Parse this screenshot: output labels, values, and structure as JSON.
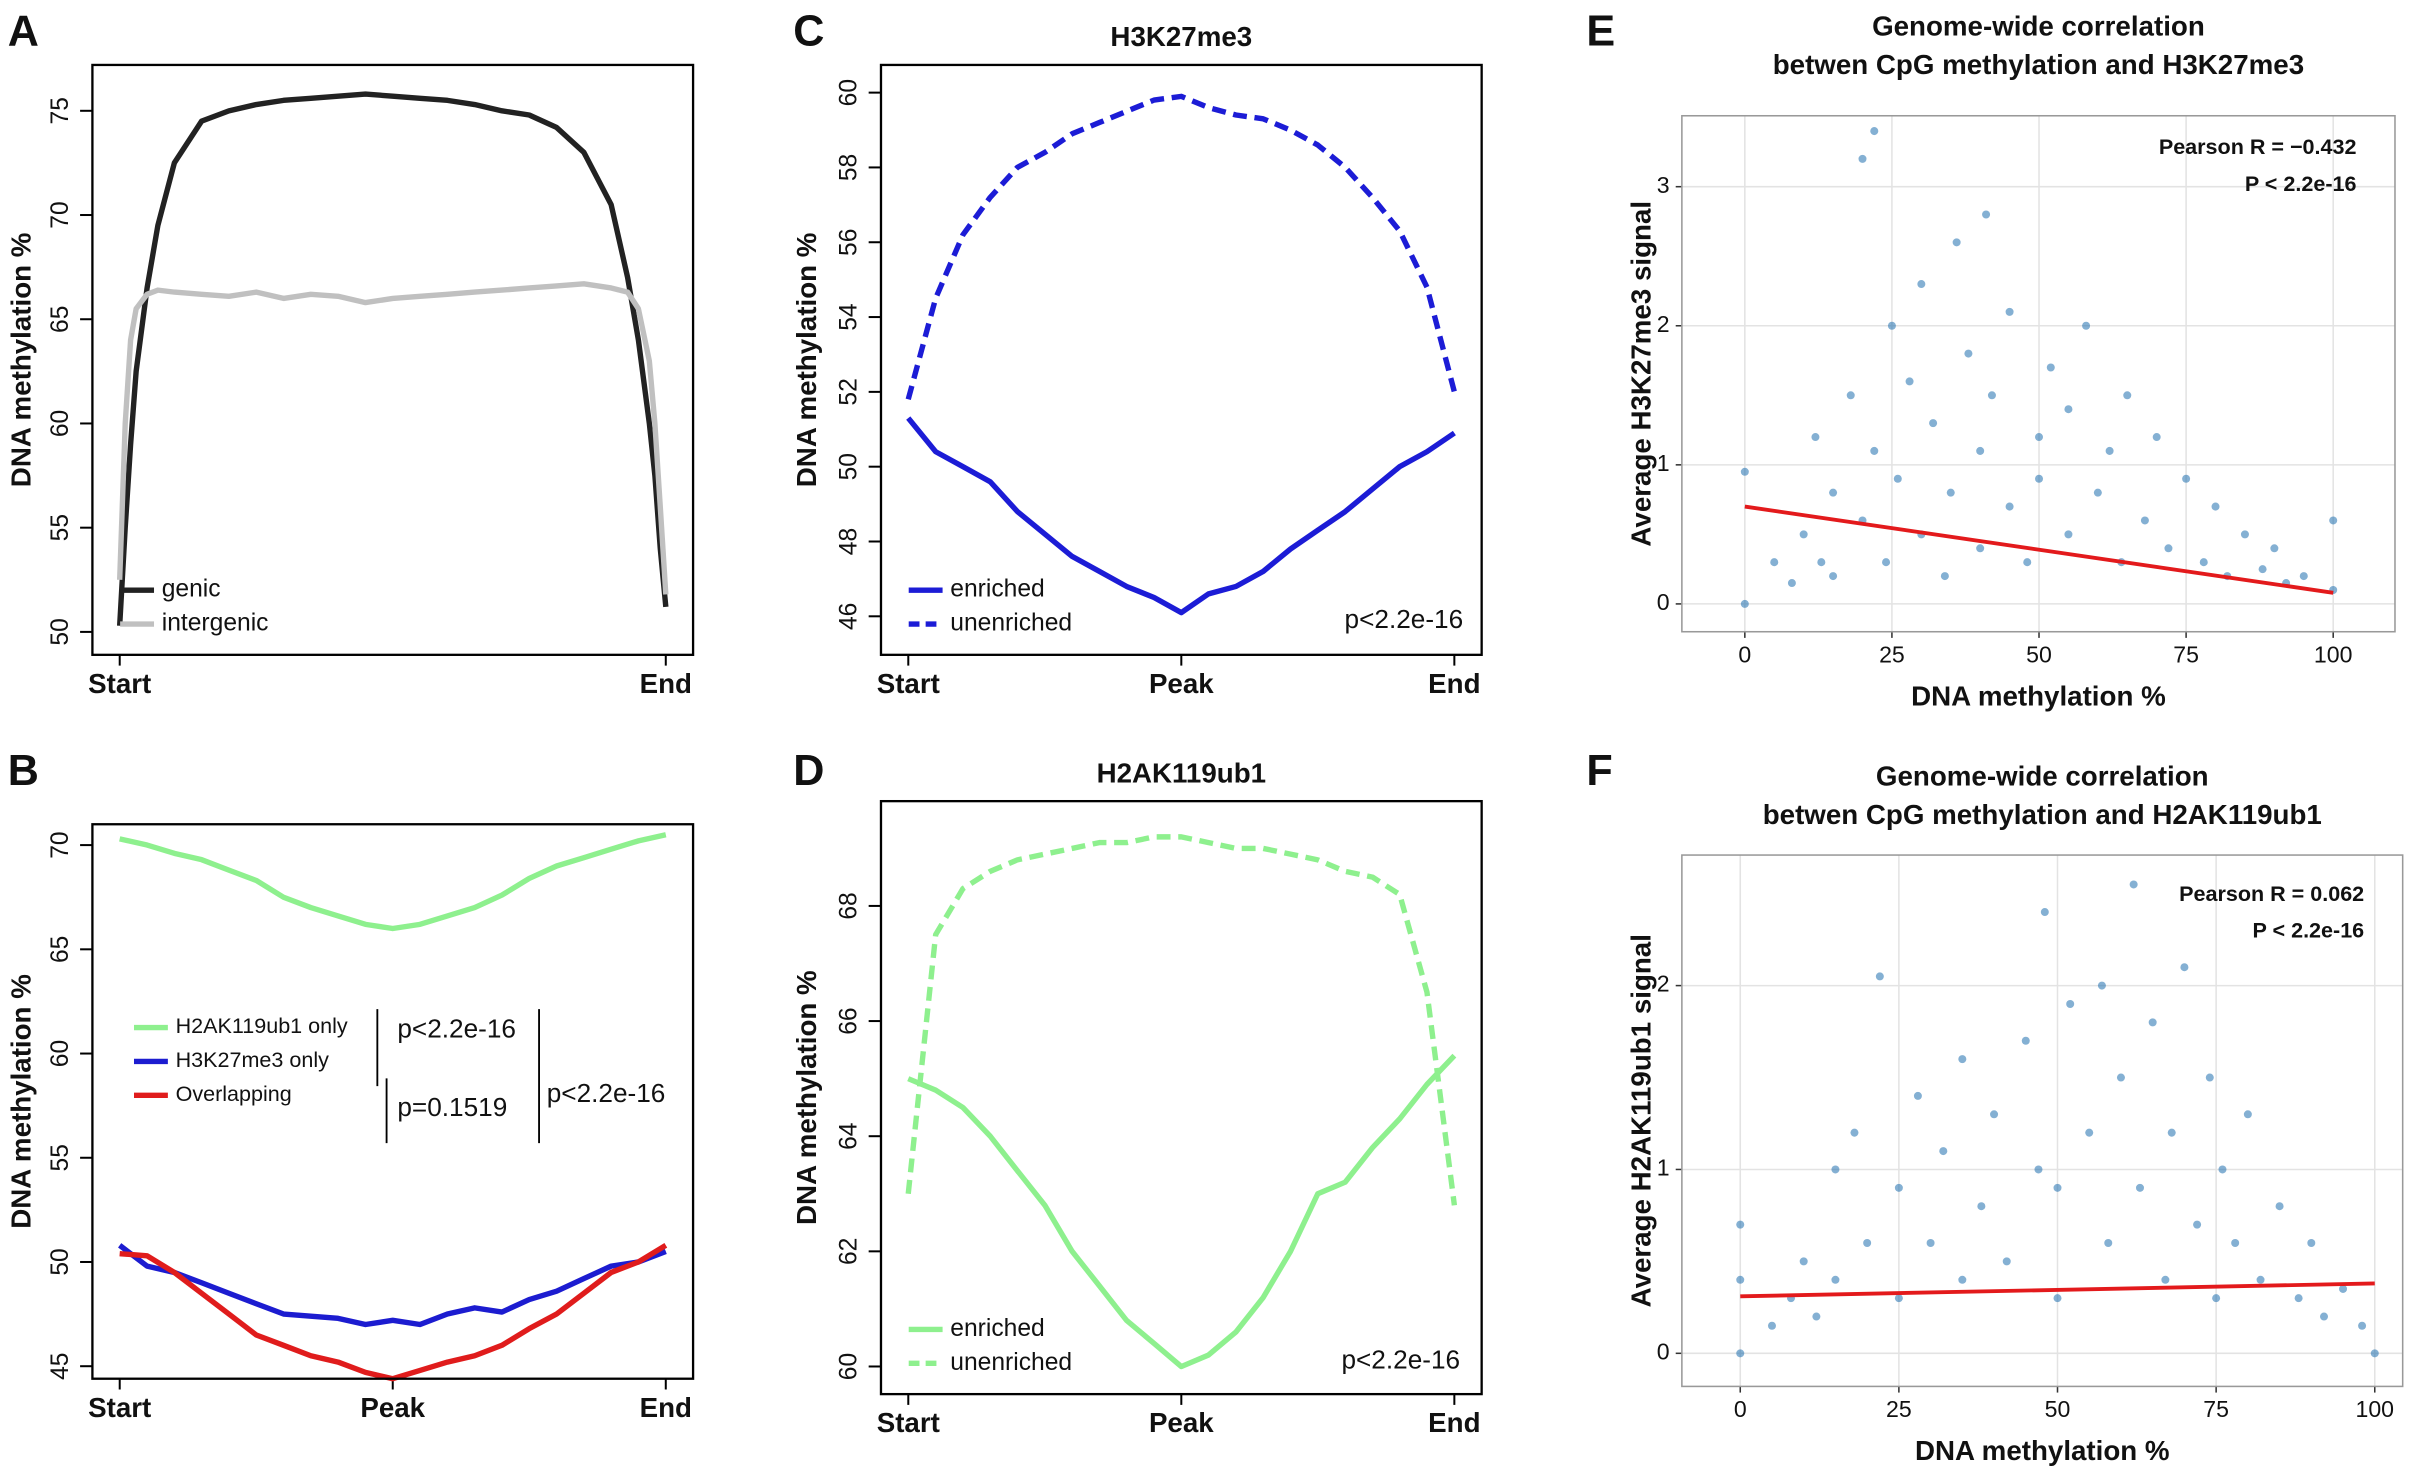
{
  "chart_data": [
    {
      "type": "line",
      "panel_label": "A",
      "ylabel": "DNA methylation %",
      "x": [
        0,
        1,
        2,
        3,
        5,
        7,
        10,
        15,
        20,
        25,
        30,
        35,
        40,
        45,
        50,
        55,
        60,
        65,
        70,
        75,
        80,
        85,
        90,
        93,
        95,
        97,
        98,
        99,
        100
      ],
      "xlim": [
        -5,
        105
      ],
      "xticks": [
        {
          "value": 0,
          "label": "Start"
        },
        {
          "value": 100,
          "label": "End"
        }
      ],
      "ylim": [
        48.9,
        77.2
      ],
      "yticks": [
        50,
        55,
        60,
        65,
        70,
        75
      ],
      "grid": false,
      "legend": "bottom-left",
      "series": [
        {
          "name": "genic",
          "color": "#222222",
          "values": [
            50.3,
            55,
            59,
            62.5,
            66.5,
            69.5,
            72.5,
            74.5,
            75,
            75.3,
            75.5,
            75.6,
            75.7,
            75.8,
            75.7,
            75.6,
            75.5,
            75.3,
            75,
            74.8,
            74.2,
            73,
            70.5,
            67,
            64,
            60,
            57.5,
            54,
            51.2
          ]
        },
        {
          "name": "intergenic",
          "color": "#c0c0c0",
          "values": [
            52.5,
            60,
            64,
            65.5,
            66.2,
            66.4,
            66.3,
            66.2,
            66.1,
            66.3,
            66,
            66.2,
            66.1,
            65.8,
            66,
            66.1,
            66.2,
            66.3,
            66.4,
            66.5,
            66.6,
            66.7,
            66.5,
            66.3,
            65.5,
            63,
            60,
            56,
            51.8
          ]
        }
      ]
    },
    {
      "type": "line",
      "panel_label": "B",
      "ylabel": "DNA methylation %",
      "x": [
        0,
        5,
        10,
        15,
        20,
        25,
        30,
        35,
        40,
        45,
        50,
        55,
        60,
        65,
        70,
        75,
        80,
        85,
        90,
        95,
        100
      ],
      "xlim": [
        -5,
        105
      ],
      "xticks": [
        {
          "value": 0,
          "label": "Start"
        },
        {
          "value": 50,
          "label": "Peak"
        },
        {
          "value": 100,
          "label": "End"
        }
      ],
      "ylim": [
        44.4,
        71
      ],
      "yticks": [
        45,
        50,
        55,
        60,
        65,
        70
      ],
      "grid": false,
      "legend": "left",
      "annotations": [
        "p<2.2e-16",
        "p=0.1519",
        "p<2.2e-16"
      ],
      "series": [
        {
          "name": "H2AK119ub1 only",
          "color": "#8ef08e",
          "values": [
            70.3,
            70,
            69.6,
            69.3,
            68.8,
            68.3,
            67.5,
            67,
            66.6,
            66.2,
            66,
            66.2,
            66.6,
            67,
            67.6,
            68.4,
            69,
            69.4,
            69.8,
            70.2,
            70.5
          ]
        },
        {
          "name": "H3K27me3 only",
          "color": "#1c1cd0",
          "values": [
            50.8,
            49.8,
            49.5,
            49,
            48.5,
            48,
            47.5,
            47.4,
            47.3,
            47,
            47.2,
            47,
            47.5,
            47.8,
            47.6,
            48.2,
            48.6,
            49.2,
            49.8,
            50,
            50.5
          ]
        },
        {
          "name": "Overlapping",
          "color": "#e01c1c",
          "values": [
            50.4,
            50.3,
            49.5,
            48.5,
            47.5,
            46.5,
            46,
            45.5,
            45.2,
            44.7,
            44.4,
            44.8,
            45.2,
            45.5,
            46,
            46.8,
            47.5,
            48.5,
            49.5,
            50,
            50.8
          ]
        }
      ]
    },
    {
      "type": "line",
      "panel_label": "C",
      "title": "H3K27me3",
      "ylabel": "DNA methylation %",
      "x": [
        0,
        5,
        10,
        15,
        20,
        25,
        30,
        35,
        40,
        45,
        50,
        55,
        60,
        65,
        70,
        75,
        80,
        85,
        90,
        95,
        100
      ],
      "xlim": [
        -5,
        105
      ],
      "xticks": [
        {
          "value": 0,
          "label": "Start"
        },
        {
          "value": 50,
          "label": "Peak"
        },
        {
          "value": 100,
          "label": "End"
        }
      ],
      "ylim": [
        44.97,
        60.74
      ],
      "yticks": [
        46,
        48,
        50,
        52,
        54,
        56,
        58,
        60
      ],
      "grid": false,
      "legend": "bottom-left",
      "annotations": [
        "p<2.2e-16"
      ],
      "series": [
        {
          "name": "enriched",
          "color": "#1c1cd6",
          "dashed": false,
          "values": [
            51.3,
            50.4,
            50,
            49.6,
            48.8,
            48.2,
            47.6,
            47.2,
            46.8,
            46.5,
            46.1,
            46.6,
            46.8,
            47.2,
            47.8,
            48.3,
            48.8,
            49.4,
            50,
            50.4,
            50.9
          ]
        },
        {
          "name": "unenriched",
          "color": "#1c1cd6",
          "dashed": true,
          "values": [
            51.8,
            54.5,
            56.2,
            57.2,
            58,
            58.4,
            58.9,
            59.2,
            59.5,
            59.8,
            59.9,
            59.6,
            59.4,
            59.3,
            59,
            58.6,
            58,
            57.2,
            56.3,
            54.8,
            52
          ]
        }
      ]
    },
    {
      "type": "line",
      "panel_label": "D",
      "title": "H2AK119ub1",
      "ylabel": "DNA methylation %",
      "x": [
        0,
        5,
        10,
        15,
        20,
        25,
        30,
        35,
        40,
        45,
        50,
        55,
        60,
        65,
        70,
        75,
        80,
        85,
        90,
        95,
        100
      ],
      "xlim": [
        -5,
        105
      ],
      "xticks": [
        {
          "value": 0,
          "label": "Start"
        },
        {
          "value": 50,
          "label": "Peak"
        },
        {
          "value": 100,
          "label": "End"
        }
      ],
      "ylim": [
        59.52,
        69.82
      ],
      "yticks": [
        60,
        62,
        64,
        66,
        68
      ],
      "grid": false,
      "legend": "bottom-left",
      "annotations": [
        "p<2.2e-16"
      ],
      "series": [
        {
          "name": "enriched",
          "color": "#8ef08e",
          "dashed": false,
          "values": [
            65,
            64.8,
            64.5,
            64,
            63.4,
            62.8,
            62,
            61.4,
            60.8,
            60.4,
            60,
            60.2,
            60.6,
            61.2,
            62,
            63,
            63.2,
            63.8,
            64.3,
            64.9,
            65.4
          ]
        },
        {
          "name": "unenriched",
          "color": "#8ef08e",
          "dashed": true,
          "values": [
            63,
            67.5,
            68.3,
            68.6,
            68.8,
            68.9,
            69,
            69.1,
            69.1,
            69.2,
            69.2,
            69.1,
            69,
            69,
            68.9,
            68.8,
            68.6,
            68.5,
            68.2,
            66.5,
            62.8
          ]
        }
      ]
    },
    {
      "type": "scatter",
      "panel_label": "E",
      "title": [
        "Genome-wide correlation",
        "betwen CpG methylation and H3K27me3"
      ],
      "xlabel": "DNA methylation %",
      "ylabel": "Average H3K27me3 signal",
      "xlim": [
        -10.7,
        110.5
      ],
      "xticks": [
        0,
        25,
        50,
        75,
        100
      ],
      "ylim": [
        -0.2,
        3.51
      ],
      "yticks": [
        0,
        1,
        2,
        3
      ],
      "grid": true,
      "annotations": [
        "Pearson R = −0.432",
        "P < 2.2e-16"
      ],
      "series": [
        {
          "color": "#1f6fae",
          "x": [
            0,
            0,
            5,
            8,
            10,
            12,
            13,
            15,
            15,
            18,
            20,
            20,
            22,
            22,
            24,
            25,
            26,
            28,
            30,
            30,
            32,
            34,
            35,
            36,
            38,
            40,
            40,
            41,
            42,
            45,
            45,
            48,
            50,
            50,
            52,
            55,
            55,
            58,
            60,
            62,
            64,
            65,
            68,
            70,
            72,
            75,
            78,
            80,
            82,
            85,
            88,
            90,
            92,
            95,
            100,
            100
          ],
          "values": [
            0.95,
            0,
            0.3,
            0.15,
            0.5,
            1.2,
            0.3,
            0.8,
            0.2,
            1.5,
            0.6,
            3.2,
            3.4,
            1.1,
            0.3,
            2,
            0.9,
            1.6,
            0.5,
            2.3,
            1.3,
            0.2,
            0.8,
            2.6,
            1.8,
            0.4,
            1.1,
            2.8,
            1.5,
            0.7,
            2.1,
            0.3,
            1.2,
            0.9,
            1.7,
            0.5,
            1.4,
            2,
            0.8,
            1.1,
            0.3,
            1.5,
            0.6,
            1.2,
            0.4,
            0.9,
            0.3,
            0.7,
            0.2,
            0.5,
            0.25,
            0.4,
            0.15,
            0.2,
            0.1,
            0.6
          ]
        }
      ],
      "fit": {
        "color": "#e31a1c",
        "x": [
          0,
          100
        ],
        "values": [
          0.7,
          0.08
        ]
      }
    },
    {
      "type": "scatter",
      "panel_label": "F",
      "title": [
        "Genome-wide correlation",
        "betwen CpG methylation and H2AK119ub1"
      ],
      "xlabel": "DNA methylation %",
      "ylabel": "Average H2AK119ub1 signal",
      "xlim": [
        -9.2,
        104.4
      ],
      "xticks": [
        0,
        25,
        50,
        75,
        100
      ],
      "ylim": [
        -0.18,
        2.71
      ],
      "yticks": [
        0,
        1,
        2
      ],
      "grid": true,
      "annotations": [
        "Pearson R = 0.062",
        "P < 2.2e-16"
      ],
      "series": [
        {
          "color": "#1f6fae",
          "x": [
            0,
            0,
            0,
            5,
            8,
            10,
            12,
            15,
            15,
            18,
            20,
            22,
            25,
            25,
            28,
            30,
            32,
            35,
            35,
            38,
            40,
            42,
            45,
            47,
            48,
            50,
            50,
            52,
            55,
            57,
            58,
            60,
            62,
            63,
            65,
            67,
            68,
            70,
            72,
            74,
            75,
            76,
            78,
            80,
            82,
            85,
            88,
            90,
            92,
            95,
            98,
            100
          ],
          "values": [
            0.7,
            0,
            0.4,
            0.15,
            0.3,
            0.5,
            0.2,
            1,
            0.4,
            1.2,
            0.6,
            2.05,
            0.9,
            0.3,
            1.4,
            0.6,
            1.1,
            1.6,
            0.4,
            0.8,
            1.3,
            0.5,
            1.7,
            1,
            2.4,
            0.3,
            0.9,
            1.9,
            1.2,
            2,
            0.6,
            1.5,
            2.55,
            0.9,
            1.8,
            0.4,
            1.2,
            2.1,
            0.7,
            1.5,
            0.3,
            1,
            0.6,
            1.3,
            0.4,
            0.8,
            0.3,
            0.6,
            0.2,
            0.35,
            0.15,
            0
          ]
        }
      ],
      "fit": {
        "color": "#e31a1c",
        "x": [
          0,
          100
        ],
        "values": [
          0.31,
          0.38
        ]
      }
    }
  ]
}
